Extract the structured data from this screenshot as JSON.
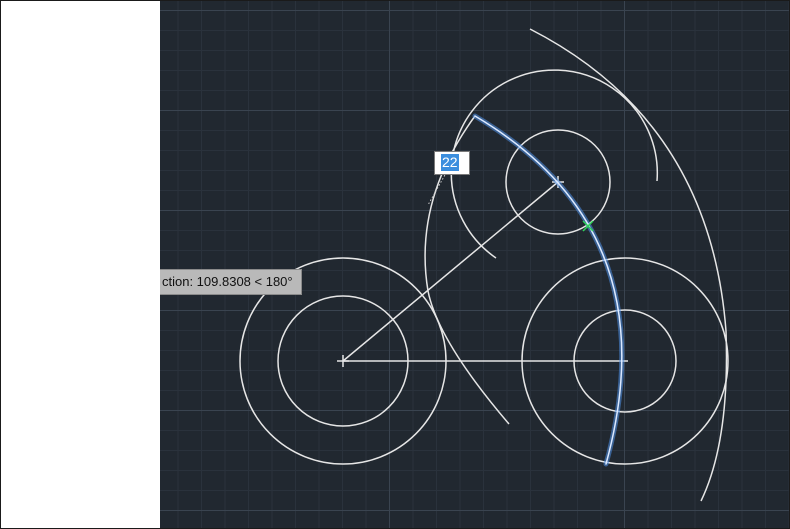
{
  "tooltip": {
    "text": "ction: 109.8308 < 180°"
  },
  "dynamic_input": {
    "value": "22"
  },
  "colors": {
    "canvas_background": "#212830",
    "geometry": "#e6e6e6",
    "selected_arc": "#4f8fe8",
    "snap_marker": "#2fd35a"
  }
}
